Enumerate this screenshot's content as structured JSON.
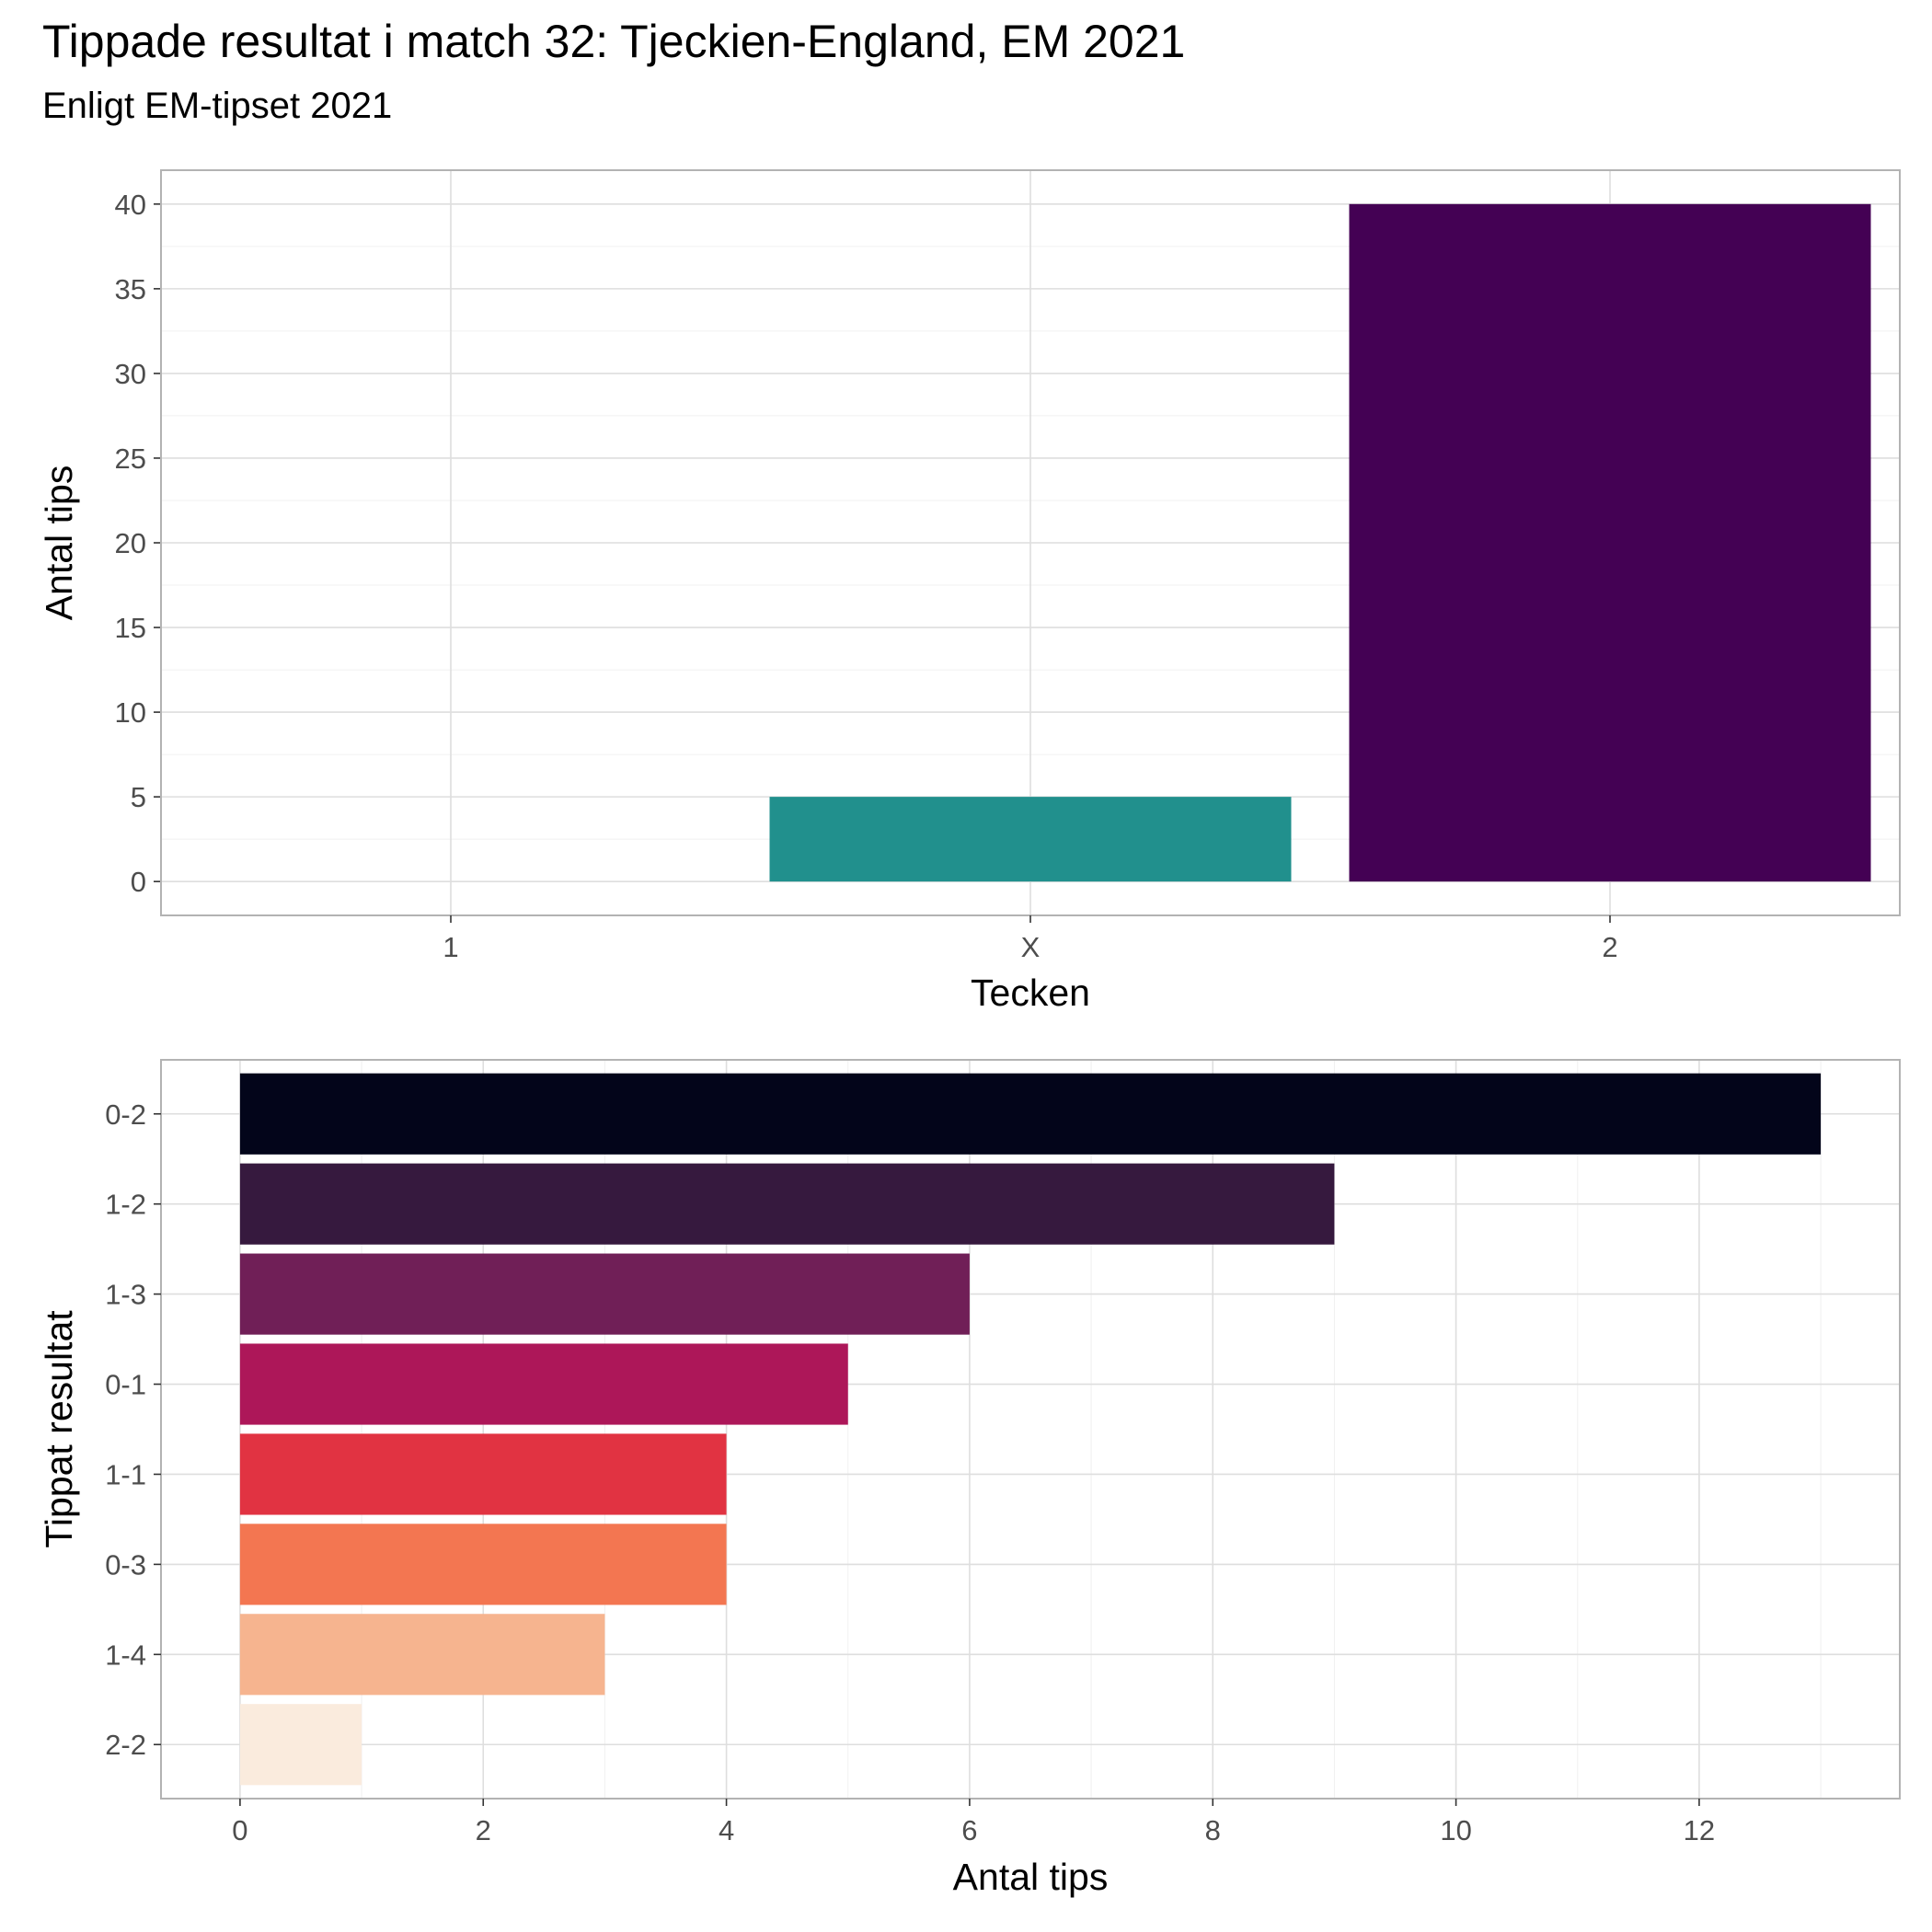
{
  "figure": {
    "title": "Tippade resultat i match 32: Tjeckien-England, EM 2021",
    "subtitle": "Enligt EM-tipset 2021"
  },
  "chart_data": [
    {
      "type": "bar",
      "orientation": "vertical",
      "xlabel": "Tecken",
      "ylabel": "Antal tips",
      "categories": [
        "1",
        "X",
        "2"
      ],
      "values": [
        0,
        5,
        40
      ],
      "colors": [
        "#fde725",
        "#21908d",
        "#440154"
      ],
      "ylim": [
        -2,
        42
      ],
      "yticks": [
        0,
        5,
        10,
        15,
        20,
        25,
        30,
        35,
        40
      ],
      "grid": true,
      "legend": "none"
    },
    {
      "type": "bar",
      "orientation": "horizontal",
      "xlabel": "Antal tips",
      "ylabel": "Tippat resultat",
      "categories": [
        "0-2",
        "1-2",
        "1-3",
        "0-1",
        "1-1",
        "0-3",
        "1-4",
        "2-2"
      ],
      "values": [
        13,
        9,
        6,
        5,
        4,
        4,
        3,
        1
      ],
      "colors": [
        "#03051a",
        "#36193e",
        "#701f57",
        "#ad1759",
        "#e13342",
        "#f37651",
        "#f6b48f",
        "#faebdd"
      ],
      "xlim": [
        -0.65,
        13.65
      ],
      "xticks": [
        0,
        2,
        4,
        6,
        8,
        10,
        12
      ],
      "grid": true,
      "legend": "none"
    }
  ]
}
